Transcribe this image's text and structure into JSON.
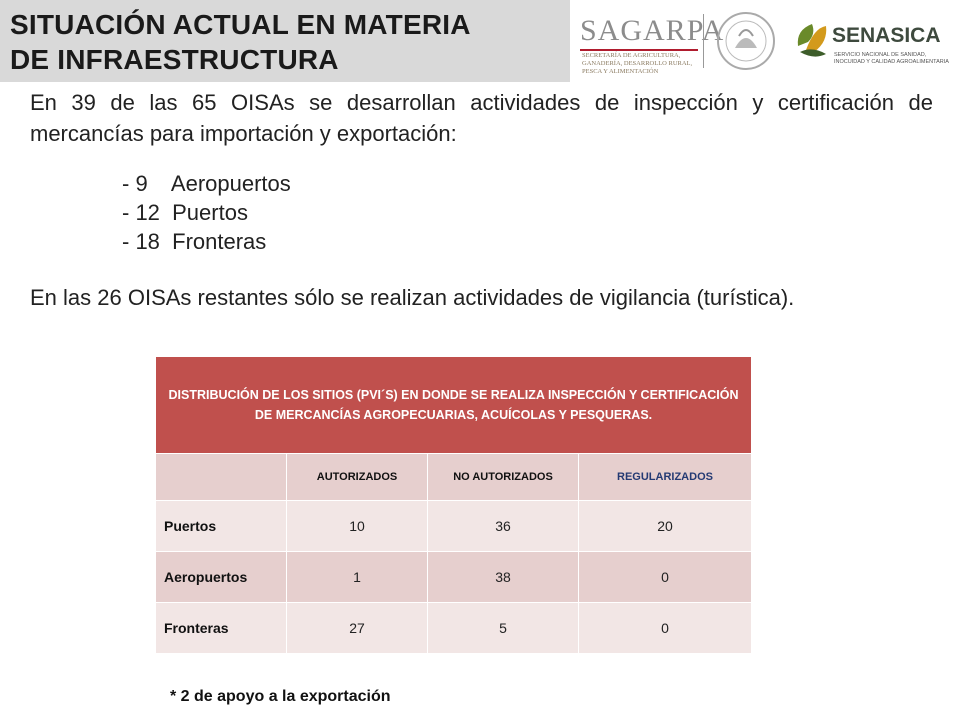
{
  "title": {
    "line1": "SITUACIÓN ACTUAL EN MATERIA",
    "line2": "DE INFRAESTRUCTURA"
  },
  "logos": {
    "sagarpa": "SAGARPA",
    "sagarpa_sub": [
      "SECRETARÍA DE AGRICULTURA,",
      "GANADERÍA, DESARROLLO RURAL,",
      "PESCA Y ALIMENTACIÓN"
    ],
    "senasica": "SENASICA",
    "senasica_sub": [
      "SERVICIO NACIONAL DE SANIDAD,",
      "INOCUIDAD Y CALIDAD AGROALIMENTARIA"
    ],
    "brand_color": "#b01c2e"
  },
  "para1": "En 39 de las 65 OISAs se desarrollan actividades de inspección y certificación de mercancías para importación y exportación:",
  "list": [
    "- 9    Aeropuertos",
    "- 12  Puertos",
    "- 18  Fronteras"
  ],
  "para2": "En las 26 OISAs restantes sólo se realizan actividades de vigilancia (turística).",
  "table": {
    "header": "DISTRIBUCIÓN DE LOS SITIOS (PVI´S) EN DONDE SE REALIZA INSPECCIÓN Y CERTIFICACIÓN DE MERCANCÍAS AGROPECUARIAS, ACUÍCOLAS Y PESQUERAS.",
    "columns": [
      "",
      "AUTORIZADOS",
      "NO AUTORIZADOS",
      "REGULARIZADOS"
    ],
    "rows": [
      {
        "label": "Puertos",
        "autorizados": "10",
        "no_autorizados": "36",
        "regularizados": "20"
      },
      {
        "label": "Aeropuertos",
        "autorizados": "1",
        "no_autorizados": "38",
        "regularizados": "0"
      },
      {
        "label": "Fronteras",
        "autorizados": "27",
        "no_autorizados": "5",
        "regularizados": "0"
      }
    ],
    "header_color": "#c0504d"
  },
  "note": "* 2 de apoyo a la exportación"
}
